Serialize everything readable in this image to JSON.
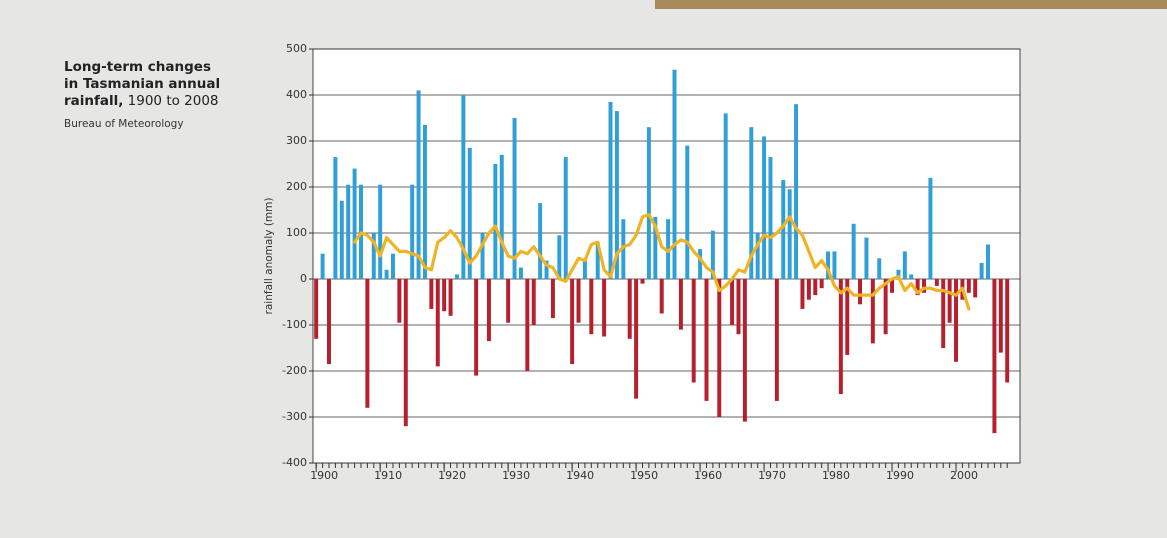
{
  "chart_data": {
    "type": "bar",
    "title": "Long-term changes in Tasmanian annual rainfall,",
    "subtitle": "1900 to 2008",
    "source": "Bureau of Meteorology",
    "y_label": "rainfall anomaly (mm)",
    "x": [
      1900,
      1901,
      1902,
      1903,
      1904,
      1905,
      1906,
      1907,
      1908,
      1909,
      1910,
      1911,
      1912,
      1913,
      1914,
      1915,
      1916,
      1917,
      1918,
      1919,
      1920,
      1921,
      1922,
      1923,
      1924,
      1925,
      1926,
      1927,
      1928,
      1929,
      1930,
      1931,
      1932,
      1933,
      1934,
      1935,
      1936,
      1937,
      1938,
      1939,
      1940,
      1941,
      1942,
      1943,
      1944,
      1945,
      1946,
      1947,
      1948,
      1949,
      1950,
      1951,
      1952,
      1953,
      1954,
      1955,
      1956,
      1957,
      1958,
      1959,
      1960,
      1961,
      1962,
      1963,
      1964,
      1965,
      1966,
      1967,
      1968,
      1969,
      1970,
      1971,
      1972,
      1973,
      1974,
      1975,
      1976,
      1977,
      1978,
      1979,
      1980,
      1981,
      1982,
      1983,
      1984,
      1985,
      1986,
      1987,
      1988,
      1989,
      1990,
      1991,
      1992,
      1993,
      1994,
      1995,
      1996,
      1997,
      1998,
      1999,
      2000,
      2001,
      2002,
      2003,
      2004,
      2005,
      2006,
      2007,
      2008
    ],
    "series": [
      {
        "type": "bar",
        "positive_color": "#2f9fd8",
        "negative_color": "#b51f2e",
        "values": [
          -130,
          55,
          -185,
          265,
          170,
          205,
          240,
          205,
          -280,
          100,
          205,
          20,
          55,
          -95,
          -320,
          205,
          410,
          335,
          -65,
          -190,
          -70,
          -80,
          10,
          400,
          285,
          -210,
          100,
          -135,
          250,
          270,
          -95,
          350,
          25,
          -200,
          -100,
          165,
          40,
          -85,
          95,
          265,
          -185,
          -95,
          40,
          -120,
          80,
          -125,
          385,
          365,
          130,
          -130,
          -260,
          -10,
          330,
          135,
          -75,
          130,
          455,
          -110,
          290,
          -225,
          65,
          -265,
          105,
          -300,
          360,
          -100,
          -120,
          -310,
          330,
          100,
          310,
          265,
          -265,
          215,
          195,
          380,
          -65,
          -45,
          -35,
          -20,
          60,
          60,
          -250,
          -165,
          120,
          -55,
          90,
          -140,
          45,
          -120,
          -30,
          20,
          60,
          10,
          -35,
          -30,
          220,
          -15,
          -150,
          -95,
          -180,
          -45,
          -30,
          -40,
          35,
          75,
          -335,
          -160,
          -225
        ]
      },
      {
        "type": "line",
        "color": "#f0b323",
        "values": [
          null,
          null,
          null,
          null,
          null,
          null,
          80,
          100,
          95,
          80,
          50,
          90,
          75,
          60,
          60,
          55,
          50,
          25,
          20,
          80,
          90,
          105,
          90,
          65,
          35,
          50,
          75,
          100,
          115,
          80,
          50,
          45,
          60,
          55,
          70,
          50,
          30,
          25,
          0,
          -5,
          20,
          45,
          40,
          75,
          80,
          20,
          5,
          55,
          70,
          75,
          95,
          135,
          140,
          115,
          70,
          60,
          75,
          85,
          80,
          60,
          45,
          25,
          15,
          -25,
          -15,
          0,
          20,
          15,
          50,
          75,
          95,
          90,
          100,
          115,
          135,
          110,
          95,
          60,
          25,
          40,
          20,
          -15,
          -30,
          -20,
          -35,
          -35,
          -35,
          -35,
          -20,
          -10,
          0,
          5,
          -25,
          -10,
          -30,
          -20,
          -20,
          -25,
          -25,
          -30,
          -35,
          -20,
          -65,
          null,
          null,
          null,
          null,
          null,
          null
        ]
      }
    ],
    "xlim": [
      1899.5,
      2010
    ],
    "ylim": [
      -400,
      500
    ],
    "yticks": [
      -400,
      -300,
      -200,
      -100,
      0,
      100,
      200,
      300,
      400,
      500
    ],
    "xticks": [
      1900,
      1910,
      1920,
      1930,
      1940,
      1950,
      1960,
      1970,
      1980,
      1990,
      2000
    ],
    "grid": true
  }
}
